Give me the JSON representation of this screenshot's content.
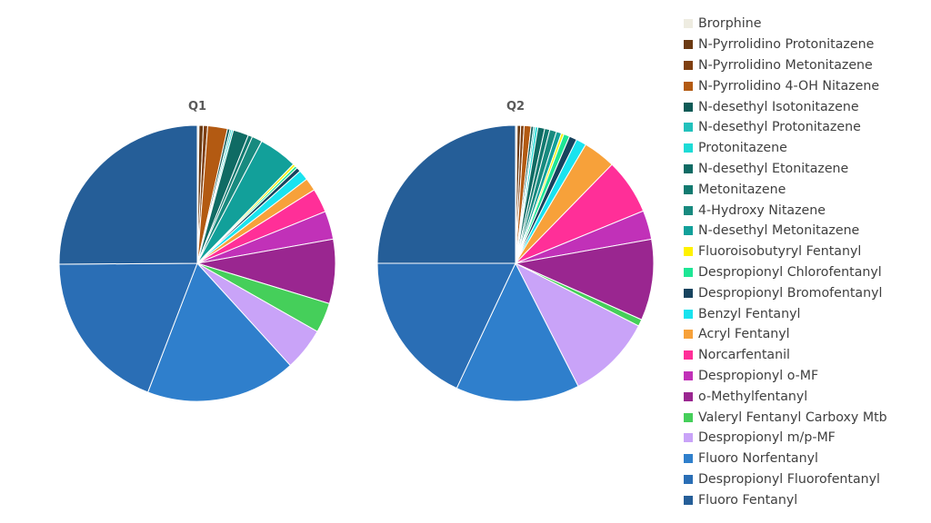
{
  "chart_data": {
    "type": "pie",
    "series_names": [
      "Brorphine",
      "N-Pyrrolidino Protonitazene",
      "N-Pyrrolidino Metonitazene",
      "N-Pyrrolidino 4-OH Nitazene",
      "N-desethyl Isotonitazene",
      "N-desethyl Protonitazene",
      "Protonitazene",
      "N-desethyl Etonitazene",
      "Metonitazene",
      "4-Hydroxy Nitazene",
      "N-desethyl Metonitazene",
      "Fluoroisobutyryl Fentanyl",
      "Despropionyl Chlorofentanyl",
      "Despropionyl Bromofentanyl",
      "Benzyl Fentanyl",
      "Acryl Fentanyl",
      "Norcarfentanil",
      "Despropionyl o-MF",
      "o-Methylfentanyl",
      "Valeryl Fentanyl Carboxy Mtb",
      "Despropionyl m/p-MF",
      "Fluoro Norfentanyl",
      "Despropionyl Fluorofentanyl",
      "Fluoro Fentanyl"
    ],
    "colors": [
      "#eeece1",
      "#6b3a12",
      "#7f3f10",
      "#b35a12",
      "#0e5a56",
      "#22c1bc",
      "#1ddbd6",
      "#0f6b64",
      "#127a70",
      "#188a7f",
      "#12a09a",
      "#fff200",
      "#1ee695",
      "#17435e",
      "#19e3ef",
      "#f7a13a",
      "#ff2f98",
      "#c131b8",
      "#9a2690",
      "#45cf5a",
      "#c9a3f8",
      "#2f7fcc",
      "#2a6eb5",
      "#255e98"
    ],
    "pies": [
      {
        "title": "Q1",
        "values": [
          0.2,
          0.5,
          0.5,
          2.3,
          0.3,
          0.2,
          0.2,
          1.8,
          0.5,
          1.2,
          4.5,
          0.3,
          0.3,
          0.5,
          1.2,
          1.5,
          2.8,
          3.3,
          7.5,
          3.5,
          5.0,
          17.5,
          19.0,
          25.0
        ]
      },
      {
        "title": "Q2",
        "values": [
          0.2,
          0.4,
          0.4,
          0.8,
          0.3,
          0.2,
          0.3,
          0.8,
          0.6,
          0.8,
          0.6,
          0.3,
          0.7,
          0.9,
          1.2,
          3.8,
          6.5,
          3.4,
          9.5,
          0.8,
          10.0,
          14.5,
          18.0,
          25.0
        ]
      }
    ],
    "legend_position": "right"
  }
}
